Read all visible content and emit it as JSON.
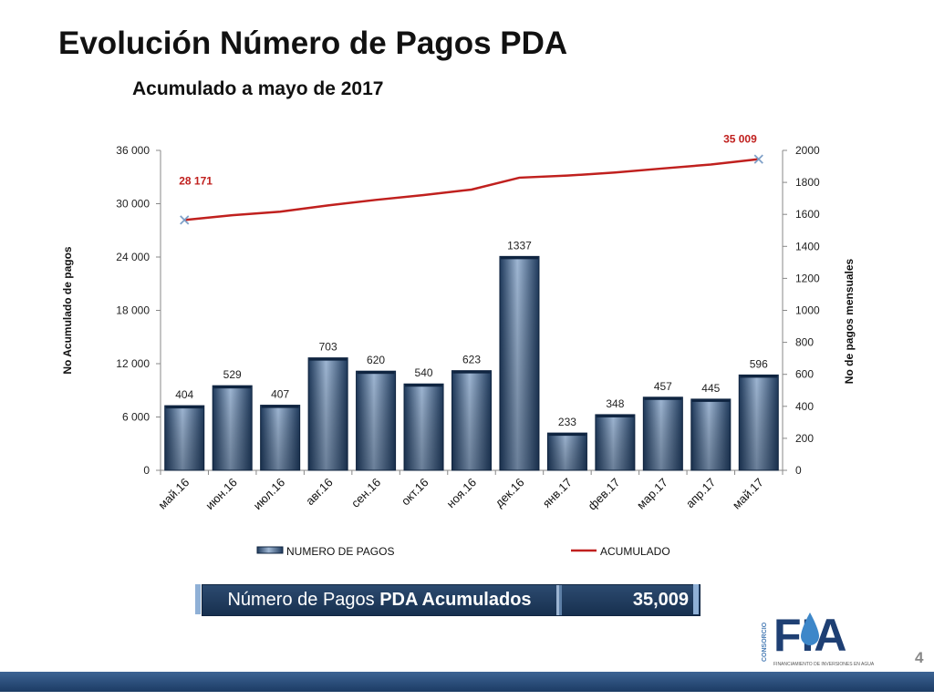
{
  "header": {
    "title": "Evolución Número de Pagos PDA",
    "subtitle": "Acumulado a mayo de 2017"
  },
  "chart_data": {
    "type": "bar",
    "categories": [
      "май.16",
      "июн.16",
      "июл.16",
      "авг.16",
      "сен.16",
      "окт.16",
      "ноя.16",
      "дек.16",
      "янв.17",
      "фев.17",
      "мар.17",
      "апр.17",
      "май.17"
    ],
    "series": [
      {
        "name": "NUMERO DE PAGOS",
        "type": "bar",
        "axis": "right",
        "values": [
          404,
          529,
          407,
          703,
          620,
          540,
          623,
          1337,
          233,
          348,
          457,
          445,
          596
        ],
        "labels": [
          "404",
          "529",
          "407",
          "703",
          "620",
          "540",
          "623",
          "1337",
          "233",
          "348",
          "457",
          "445",
          "596"
        ]
      },
      {
        "name": "ACUMULADO",
        "type": "line",
        "axis": "left",
        "values": [
          28171,
          28700,
          29107,
          29810,
          30430,
          30970,
          31593,
          32930,
          33163,
          33511,
          33968,
          34413,
          35009
        ]
      }
    ],
    "annotations": {
      "first": "28 171",
      "last": "35 009"
    },
    "ylabel_left": "No Acumulado de pagos",
    "ylabel_right": "No de pagos mensuales",
    "ylim_left": [
      0,
      36000
    ],
    "ylim_right": [
      0,
      2000
    ],
    "yticks_left": [
      "0",
      "6 000",
      "12 000",
      "18 000",
      "24 000",
      "30 000",
      "36 000"
    ],
    "yticks_right": [
      "0",
      "200",
      "400",
      "600",
      "800",
      "1000",
      "1200",
      "1400",
      "1600",
      "1800",
      "2000"
    ],
    "legend_position": "bottom",
    "grid": false,
    "colors": {
      "bar": "#3a5b82",
      "line": "#c0201e"
    }
  },
  "summary": {
    "label_prefix": "Número de Pagos ",
    "label_bold": "PDA Acumulados",
    "value": "35,009"
  },
  "logo": {
    "brand": "FIA",
    "vertical": "CONSORCIO",
    "tagline": "FINANCIAMIENTO DE INVERSIONES EN AGUA"
  },
  "page_number": "4"
}
